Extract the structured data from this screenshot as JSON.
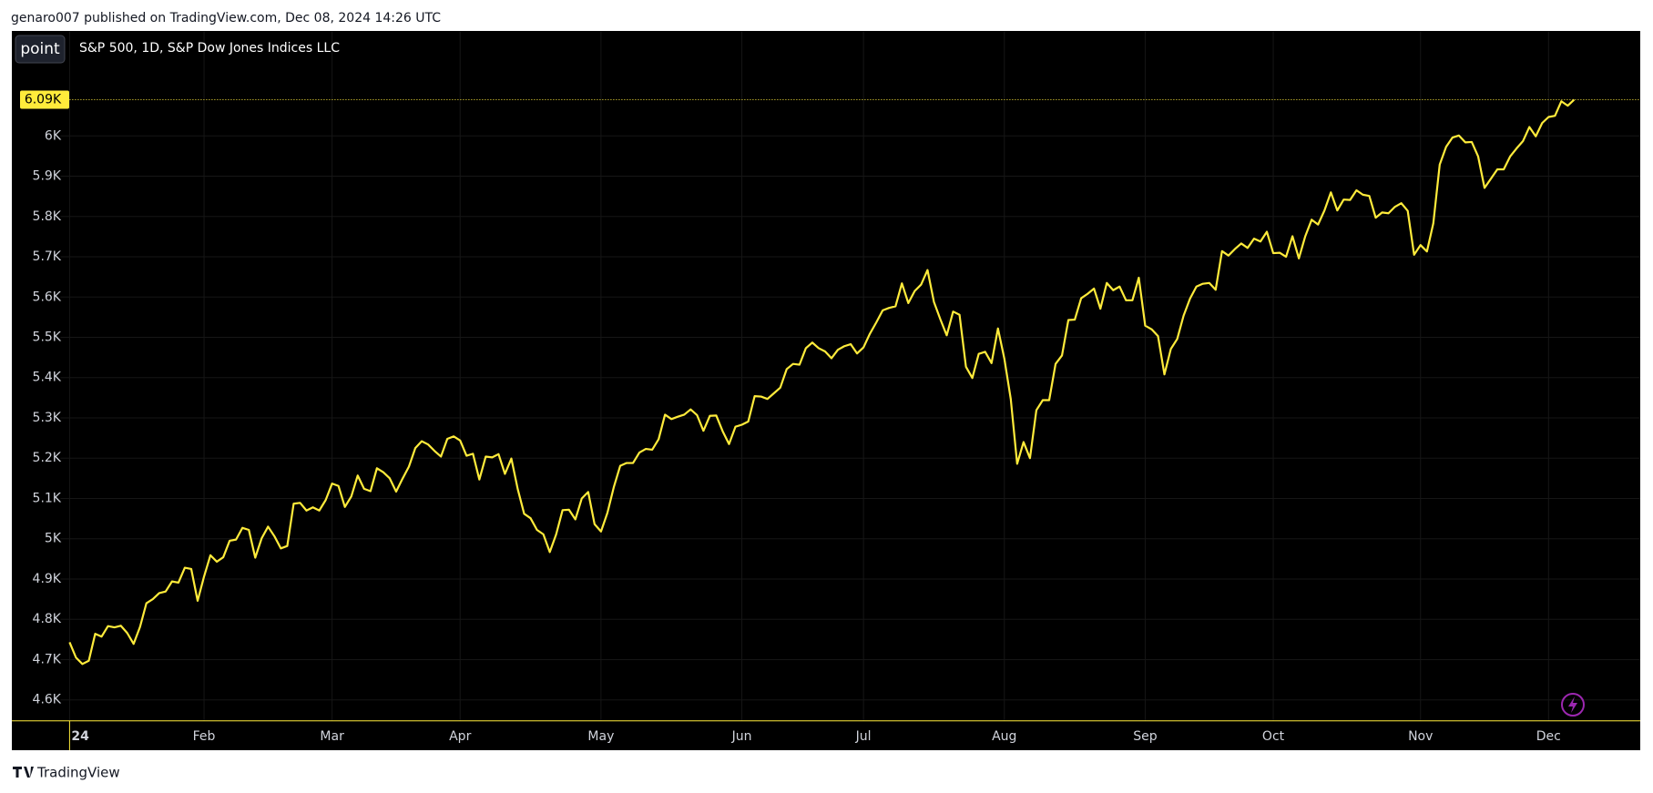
{
  "header": "genaro007 published on TradingView.com, Dec 08, 2024 14:26 UTC",
  "footer": "TradingView",
  "button": "point",
  "chart_data": {
    "type": "line",
    "title": "S&P 500, 1D, S&P Dow Jones Indices LLC",
    "color": "#ffeb3b",
    "grid": true,
    "last_value_label": "6.09K",
    "ylim": [
      4548,
      6259
    ],
    "yticks": [
      {
        "value": 4600,
        "label": "4.6K"
      },
      {
        "value": 4700,
        "label": "4.7K"
      },
      {
        "value": 4800,
        "label": "4.8K"
      },
      {
        "value": 4900,
        "label": "4.9K"
      },
      {
        "value": 5000,
        "label": "5K"
      },
      {
        "value": 5100,
        "label": "5.1K"
      },
      {
        "value": 5200,
        "label": "5.2K"
      },
      {
        "value": 5300,
        "label": "5.3K"
      },
      {
        "value": 5400,
        "label": "5.4K"
      },
      {
        "value": 5500,
        "label": "5.5K"
      },
      {
        "value": 5600,
        "label": "5.6K"
      },
      {
        "value": 5700,
        "label": "5.7K"
      },
      {
        "value": 5800,
        "label": "5.8K"
      },
      {
        "value": 5900,
        "label": "5.9K"
      },
      {
        "value": 6000,
        "label": "6K"
      }
    ],
    "categories": [
      "24",
      null,
      null,
      null,
      null,
      null,
      null,
      null,
      null,
      null,
      null,
      null,
      null,
      null,
      null,
      null,
      null,
      null,
      null,
      null,
      null,
      "Feb",
      null,
      null,
      null,
      null,
      null,
      null,
      null,
      null,
      null,
      null,
      null,
      null,
      null,
      null,
      null,
      null,
      null,
      null,
      null,
      "Mar",
      null,
      null,
      null,
      null,
      null,
      null,
      null,
      null,
      null,
      null,
      null,
      null,
      null,
      null,
      null,
      null,
      null,
      null,
      null,
      "Apr",
      null,
      null,
      null,
      null,
      null,
      null,
      null,
      null,
      null,
      null,
      null,
      null,
      null,
      null,
      null,
      null,
      null,
      null,
      null,
      null,
      null,
      "May",
      null,
      null,
      null,
      null,
      null,
      null,
      null,
      null,
      null,
      null,
      null,
      null,
      null,
      null,
      null,
      null,
      null,
      null,
      null,
      null,
      null,
      "Jun",
      null,
      null,
      null,
      null,
      null,
      null,
      null,
      null,
      null,
      null,
      null,
      null,
      null,
      null,
      null,
      null,
      null,
      null,
      "Jul",
      null,
      null,
      null,
      null,
      null,
      null,
      null,
      null,
      null,
      null,
      null,
      null,
      null,
      null,
      null,
      null,
      null,
      null,
      null,
      null,
      null,
      "Aug",
      null,
      null,
      null,
      null,
      null,
      null,
      null,
      null,
      null,
      null,
      null,
      null,
      null,
      null,
      null,
      null,
      null,
      null,
      null,
      null,
      null,
      "Sep",
      null,
      null,
      null,
      null,
      null,
      null,
      null,
      null,
      null,
      null,
      null,
      null,
      null,
      null,
      null,
      null,
      null,
      null,
      null,
      "Oct",
      null,
      null,
      null,
      null,
      null,
      null,
      null,
      null,
      null,
      null,
      null,
      null,
      null,
      null,
      null,
      null,
      null,
      null,
      null,
      null,
      null,
      null,
      "Nov",
      null,
      null,
      null,
      null,
      null,
      null,
      null,
      null,
      null,
      null,
      null,
      null,
      null,
      null,
      null,
      null,
      null,
      null,
      null,
      "Dec",
      null,
      null,
      null,
      null
    ],
    "values": [
      4743,
      4705,
      4689,
      4697,
      4764,
      4757,
      4783,
      4780,
      4784,
      4766,
      4739,
      4781,
      4840,
      4850,
      4865,
      4869,
      4894,
      4891,
      4928,
      4925,
      4846,
      4906,
      4959,
      4943,
      4954,
      4995,
      4998,
      5027,
      5022,
      4953,
      5001,
      5030,
      5006,
      4976,
      4982,
      5087,
      5089,
      5070,
      5078,
      5070,
      5096,
      5137,
      5131,
      5079,
      5105,
      5157,
      5124,
      5118,
      5175,
      5165,
      5150,
      5117,
      5149,
      5179,
      5225,
      5242,
      5234,
      5218,
      5204,
      5248,
      5254,
      5244,
      5206,
      5211,
      5147,
      5204,
      5202,
      5210,
      5161,
      5199,
      5123,
      5062,
      5051,
      5022,
      5011,
      4967,
      5011,
      5071,
      5072,
      5048,
      5100,
      5116,
      5036,
      5018,
      5064,
      5128,
      5181,
      5188,
      5188,
      5214,
      5223,
      5221,
      5247,
      5308,
      5297,
      5303,
      5308,
      5321,
      5307,
      5268,
      5305,
      5306,
      5267,
      5235,
      5278,
      5283,
      5291,
      5354,
      5353,
      5347,
      5361,
      5375,
      5421,
      5434,
      5432,
      5473,
      5487,
      5473,
      5465,
      5448,
      5469,
      5478,
      5483,
      5460,
      5475,
      5509,
      5537,
      5567,
      5573,
      5577,
      5634,
      5585,
      5615,
      5631,
      5667,
      5588,
      5545,
      5505,
      5564,
      5556,
      5427,
      5399,
      5459,
      5464,
      5436,
      5522,
      5447,
      5347,
      5186,
      5240,
      5200,
      5319,
      5344,
      5344,
      5434,
      5455,
      5543,
      5544,
      5597,
      5608,
      5621,
      5571,
      5635,
      5617,
      5626,
      5592,
      5592,
      5648,
      5529,
      5520,
      5503,
      5408,
      5471,
      5496,
      5554,
      5596,
      5626,
      5633,
      5635,
      5618,
      5714,
      5703,
      5719,
      5733,
      5722,
      5745,
      5738,
      5762,
      5709,
      5710,
      5700,
      5751,
      5696,
      5751,
      5792,
      5780,
      5815,
      5860,
      5815,
      5842,
      5841,
      5865,
      5854,
      5851,
      5797,
      5810,
      5808,
      5824,
      5833,
      5814,
      5705,
      5729,
      5713,
      5783,
      5929,
      5973,
      5996,
      6001,
      5984,
      5985,
      5949,
      5871,
      5894,
      5917,
      5917,
      5949,
      5969,
      5987,
      6022,
      5999,
      6032,
      6047,
      6050,
      6086,
      6075,
      6090
    ]
  }
}
